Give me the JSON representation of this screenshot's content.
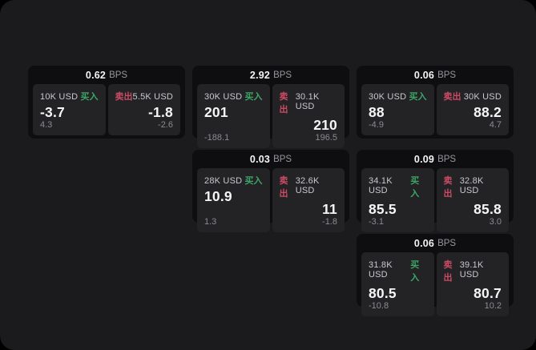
{
  "labels": {
    "bps_unit": "BPS",
    "buy": "买入",
    "sell": "卖出"
  },
  "colors": {
    "window_bg": "#1b1b1d",
    "card_bg": "#0e0e10",
    "panel_bg": "#232326",
    "buy_green": "#3da566",
    "sell_red": "#cc4b64"
  },
  "cards": [
    {
      "bps": "0.62",
      "buy": {
        "amount": "10K USD",
        "value": "-3.7",
        "sub": "4.3"
      },
      "sell": {
        "amount": "5.5K USD",
        "value": "-1.8",
        "sub": "-2.6"
      }
    },
    {
      "bps": "2.92",
      "buy": {
        "amount": "30K USD",
        "value": "201",
        "sub": "-188.1"
      },
      "sell": {
        "amount": "30.1K USD",
        "value": "210",
        "sub": "196.5"
      }
    },
    {
      "bps": "0.06",
      "buy": {
        "amount": "30K USD",
        "value": "88",
        "sub": "-4.9"
      },
      "sell": {
        "amount": "30K USD",
        "value": "88.2",
        "sub": "4.7"
      }
    },
    {
      "bps": "0.03",
      "buy": {
        "amount": "28K USD",
        "value": "10.9",
        "sub": "1.3"
      },
      "sell": {
        "amount": "32.6K USD",
        "value": "11",
        "sub": "-1.8"
      }
    },
    {
      "bps": "0.09",
      "buy": {
        "amount": "34.1K USD",
        "value": "85.5",
        "sub": "-3.1"
      },
      "sell": {
        "amount": "32.8K USD",
        "value": "85.8",
        "sub": "3.0"
      }
    },
    {
      "bps": "0.06",
      "buy": {
        "amount": "31.8K USD",
        "value": "80.5",
        "sub": "-10.8"
      },
      "sell": {
        "amount": "39.1K USD",
        "value": "80.7",
        "sub": "10.2"
      }
    }
  ]
}
